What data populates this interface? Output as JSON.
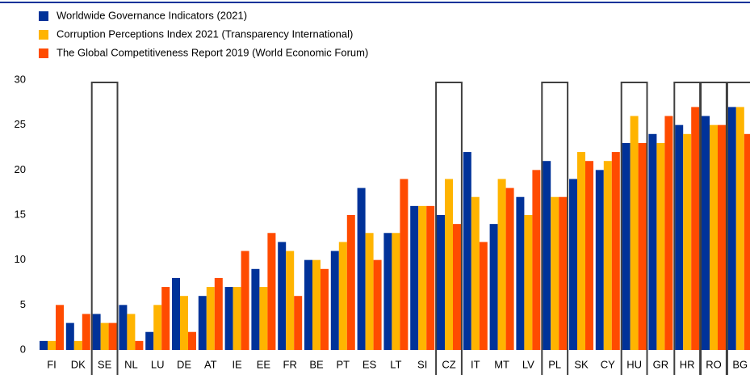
{
  "chart_data": {
    "type": "bar",
    "categories": [
      "FI",
      "DK",
      "SE",
      "NL",
      "LU",
      "DE",
      "AT",
      "IE",
      "EE",
      "FR",
      "BE",
      "PT",
      "ES",
      "LT",
      "SI",
      "CZ",
      "IT",
      "MT",
      "LV",
      "PL",
      "SK",
      "CY",
      "HU",
      "GR",
      "HR",
      "RO",
      "BG"
    ],
    "series": [
      {
        "name": "Worldwide Governance Indicators (2021)",
        "color": "#003299",
        "values": [
          1,
          3,
          4,
          5,
          2,
          8,
          6,
          7,
          9,
          12,
          10,
          11,
          18,
          13,
          16,
          15,
          22,
          14,
          17,
          21,
          19,
          20,
          23,
          24,
          25,
          26,
          27
        ]
      },
      {
        "name": "Corruption Perceptions Index 2021 (Transparency International)",
        "color": "#ffb400",
        "values": [
          1,
          1,
          3,
          4,
          5,
          6,
          7,
          7,
          7,
          11,
          10,
          12,
          13,
          13,
          16,
          19,
          17,
          19,
          15,
          17,
          22,
          21,
          26,
          23,
          24,
          25,
          27
        ]
      },
      {
        "name": "The Global Competitiveness Report 2019 (World Economic Forum)",
        "color": "#ff4b00",
        "values": [
          5,
          4,
          3,
          1,
          7,
          2,
          8,
          11,
          13,
          6,
          9,
          15,
          10,
          19,
          16,
          14,
          12,
          18,
          20,
          17,
          21,
          22,
          23,
          26,
          27,
          25,
          24
        ]
      }
    ],
    "highlighted": [
      "SE",
      "CZ",
      "PL",
      "HU",
      "HR",
      "RO",
      "BG"
    ],
    "ylim": [
      0,
      30
    ],
    "yticks": [
      0,
      5,
      10,
      15,
      20,
      25,
      30
    ],
    "grid": false,
    "legend": "top-left"
  }
}
